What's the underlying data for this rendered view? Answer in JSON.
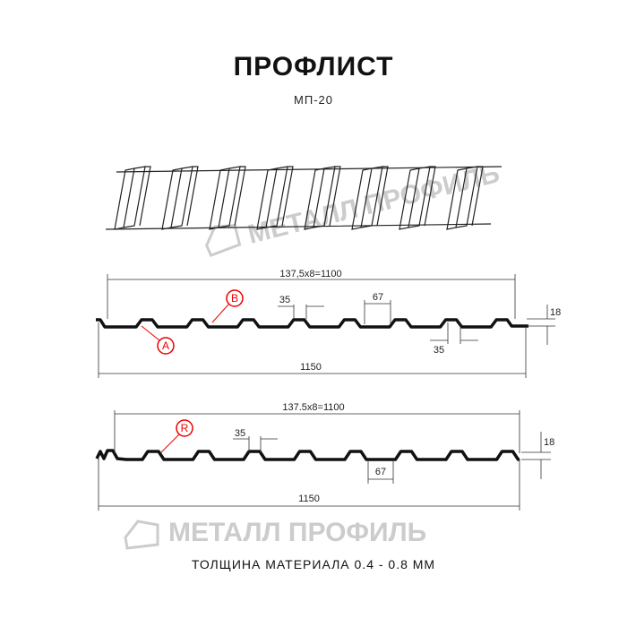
{
  "title": "ПРОФЛИСТ",
  "subtitle": "МП-20",
  "watermark": "МЕТАЛЛ ПРОФИЛЬ",
  "footer": "ТОЛЩИНА МАТЕРИАЛА 0.4 - 0.8 ММ",
  "profile1": {
    "pitch": "137,5x8=1100",
    "width": "1150",
    "crest": "35",
    "valley": "67",
    "height": "18",
    "bottom_crest": "35",
    "marker_a": "A",
    "marker_b": "B"
  },
  "profile2": {
    "pitch": "137.5x8=1100",
    "width": "1150",
    "crest": "35",
    "valley": "67",
    "height": "18",
    "marker_r": "R"
  },
  "colors": {
    "accent": "#e00000",
    "line": "#111111",
    "watermark": "#cccccc"
  }
}
